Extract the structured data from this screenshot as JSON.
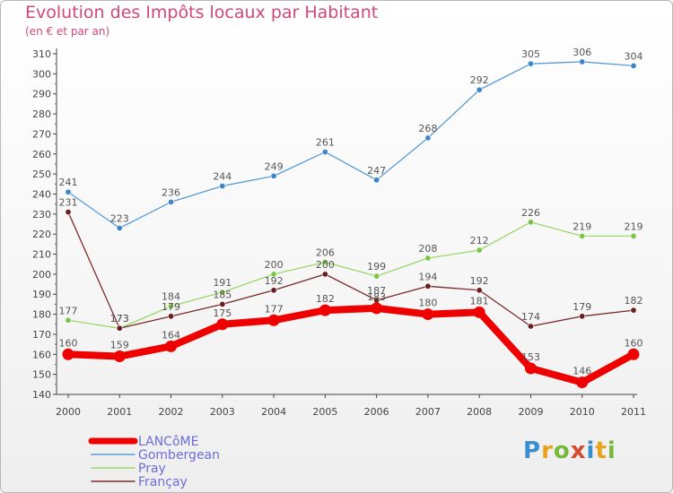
{
  "title": "Evolution des Impôts locaux par Habitant",
  "subtitle": "(en € et par an)",
  "brand": {
    "letters": [
      {
        "ch": "P",
        "color": "#3a8fd0"
      },
      {
        "ch": "r",
        "color": "#e8a31b"
      },
      {
        "ch": "o",
        "color": "#79b93a"
      },
      {
        "ch": "x",
        "color": "#d84a30"
      },
      {
        "ch": "i",
        "color": "#3a8fd0"
      },
      {
        "ch": "t",
        "color": "#e8a31b"
      },
      {
        "ch": "i",
        "color": "#79b93a"
      }
    ]
  },
  "chart_data": {
    "type": "line",
    "title": "Evolution des Impôts locaux par Habitant",
    "subtitle": "(en € et par an)",
    "xlabel": "",
    "ylabel": "",
    "x": [
      "2000",
      "2001",
      "2002",
      "2003",
      "2004",
      "2005",
      "2006",
      "2007",
      "2008",
      "2009",
      "2010",
      "2011"
    ],
    "ylim": [
      140,
      310
    ],
    "yticks": [
      140,
      150,
      160,
      170,
      180,
      190,
      200,
      210,
      220,
      230,
      240,
      250,
      260,
      270,
      280,
      290,
      300,
      310
    ],
    "grid": false,
    "legend_position": "bottom-left",
    "series": [
      {
        "name": "Gombergean",
        "color": "#5a9bd4",
        "point_color": "#3f86c8",
        "values": [
          241,
          223,
          236,
          244,
          249,
          261,
          247,
          268,
          292,
          305,
          306,
          304
        ],
        "bold": false
      },
      {
        "name": "Pray",
        "color": "#9ad86a",
        "point_color": "#7cc44a",
        "values": [
          177,
          173,
          184,
          191,
          200,
          206,
          199,
          208,
          212,
          226,
          219,
          219
        ],
        "bold": false
      },
      {
        "name": "Françay",
        "color": "#7a2a2a",
        "point_color": "#6a1e1e",
        "values": [
          231,
          173,
          179,
          185,
          192,
          200,
          187,
          194,
          192,
          174,
          179,
          182
        ],
        "bold": false
      },
      {
        "name": "LANCôME",
        "color": "#ee0000",
        "point_color": "#ee0000",
        "values": [
          160,
          159,
          164,
          175,
          177,
          182,
          183,
          180,
          181,
          153,
          146,
          160
        ],
        "bold": true
      }
    ],
    "legend": [
      {
        "name": "LANCôME",
        "color": "#ee0000",
        "text_color": "#6d6dd8",
        "bold": true
      },
      {
        "name": "Gombergean",
        "color": "#5a9bd4",
        "text_color": "#6d6dd8",
        "bold": false
      },
      {
        "name": "Pray",
        "color": "#9ad86a",
        "text_color": "#6d6dd8",
        "bold": false
      },
      {
        "name": "Françay",
        "color": "#7a2a2a",
        "text_color": "#6d6dd8",
        "bold": false
      }
    ]
  }
}
